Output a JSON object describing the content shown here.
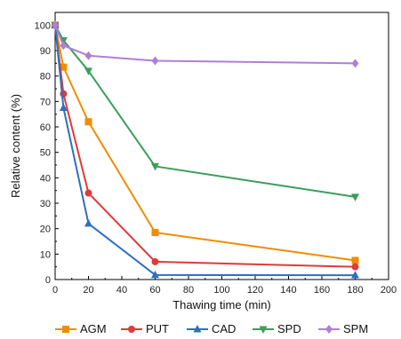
{
  "chart_data": {
    "type": "line",
    "xlabel": "Thawing time (min)",
    "ylabel": "Relative content (%)",
    "xlim": [
      0,
      200
    ],
    "ylim": [
      0,
      105
    ],
    "xticks": [
      0,
      20,
      40,
      60,
      80,
      100,
      120,
      140,
      160,
      180,
      200
    ],
    "yticks": [
      0,
      10,
      20,
      30,
      40,
      50,
      60,
      70,
      80,
      90,
      100
    ],
    "grid": false,
    "legend_position": "bottom",
    "series": [
      {
        "name": "AGM",
        "color": "#f08c00",
        "marker": "square",
        "x": [
          0,
          5,
          20,
          60,
          180
        ],
        "y": [
          100,
          83.5,
          62,
          18.5,
          7.5
        ]
      },
      {
        "name": "PUT",
        "color": "#e03a3a",
        "marker": "circle",
        "x": [
          0,
          5,
          20,
          60,
          180
        ],
        "y": [
          100,
          73,
          34,
          7,
          5
        ]
      },
      {
        "name": "CAD",
        "color": "#2f6fbf",
        "marker": "triangle-up",
        "x": [
          0,
          5,
          20,
          60,
          180
        ],
        "y": [
          100,
          67.5,
          22,
          1.8,
          1.7
        ]
      },
      {
        "name": "SPD",
        "color": "#3a9e5a",
        "marker": "triangle-down",
        "x": [
          0,
          5,
          20,
          60,
          180
        ],
        "y": [
          100,
          94,
          82,
          44.5,
          32.5
        ]
      },
      {
        "name": "SPM",
        "color": "#b07fd6",
        "marker": "diamond",
        "x": [
          0,
          5,
          20,
          60,
          180
        ],
        "y": [
          100,
          92,
          88,
          86,
          85
        ]
      }
    ]
  }
}
